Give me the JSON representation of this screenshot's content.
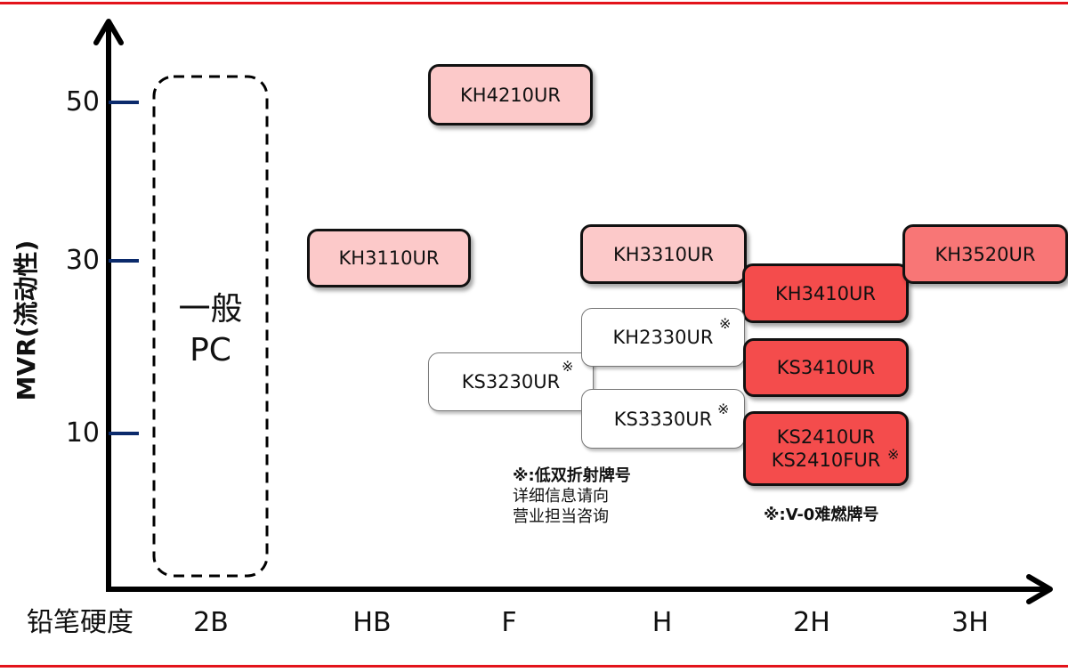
{
  "y_axis": {
    "label": "MVR(流动性)",
    "ticks": [
      "50",
      "30",
      "10"
    ]
  },
  "x_axis": {
    "label": "铅笔硬度",
    "categories": [
      "2B",
      "HB",
      "F",
      "H",
      "2H",
      "3H"
    ]
  },
  "general_pc": {
    "line1": "一般",
    "line2": "PC"
  },
  "colors": {
    "light_pink": "#fcc9c9",
    "medium_red": "#f87676",
    "red": "#f44c4c",
    "white": "#ffffff",
    "rule": "#e3141b",
    "tick": "#0b2a6b"
  },
  "grades": {
    "kh4210ur": "KH4210UR",
    "kh3110ur": "KH3110UR",
    "kh3310ur": "KH3310UR",
    "kh3520ur": "KH3520UR",
    "kh3410ur": "KH3410UR",
    "kh2330ur": "KH2330UR",
    "ks3230ur": "KS3230UR",
    "ks3330ur": "KS3330UR",
    "ks3410ur": "KS3410UR",
    "ks2410ur": "KS2410UR",
    "ks2410fur": "KS2410FUR"
  },
  "mark_symbol": "※",
  "notes": {
    "low_birefringence": {
      "title": "※:低双折射牌号",
      "line2": "详细信息请向",
      "line3": "营业担当咨询"
    },
    "v0": "※:V-0难燃牌号"
  }
}
